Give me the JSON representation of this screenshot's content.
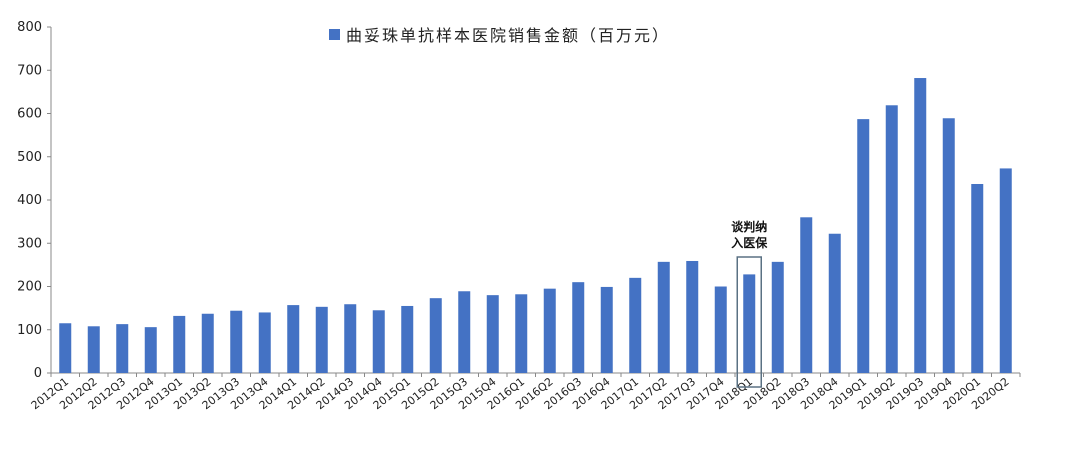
{
  "chart_data": {
    "type": "bar",
    "title": "",
    "xlabel": "",
    "ylabel": "",
    "ylim": [
      0,
      800
    ],
    "yticks": [
      0,
      100,
      200,
      300,
      400,
      500,
      600,
      700,
      800
    ],
    "grid": false,
    "legend_position": "top-center",
    "categories": [
      "2012Q1",
      "2012Q2",
      "2012Q3",
      "2012Q4",
      "2013Q1",
      "2013Q2",
      "2013Q3",
      "2013Q4",
      "2014Q1",
      "2014Q2",
      "2014Q3",
      "2014Q4",
      "2015Q1",
      "2015Q2",
      "2015Q3",
      "2015Q4",
      "2016Q1",
      "2016Q2",
      "2016Q3",
      "2016Q4",
      "2017Q1",
      "2017Q2",
      "2017Q3",
      "2017Q4",
      "2018Q1",
      "2018Q2",
      "2018Q3",
      "2018Q4",
      "2019Q1",
      "2019Q2",
      "2019Q3",
      "2019Q4",
      "2020Q1",
      "2020Q2"
    ],
    "series": [
      {
        "name": "曲妥珠单抗样本医院销售金额（百万元）",
        "color": "#4472C4",
        "values": [
          115,
          108,
          113,
          106,
          132,
          137,
          144,
          140,
          157,
          153,
          159,
          145,
          155,
          173,
          189,
          180,
          182,
          195,
          210,
          199,
          220,
          257,
          259,
          200,
          228,
          257,
          360,
          322,
          587,
          619,
          682,
          589,
          437,
          473
        ]
      }
    ],
    "annotation": {
      "lines": [
        "谈判纳",
        "入医保"
      ],
      "category": "2018Q1",
      "box_color": "#5a7183"
    }
  }
}
